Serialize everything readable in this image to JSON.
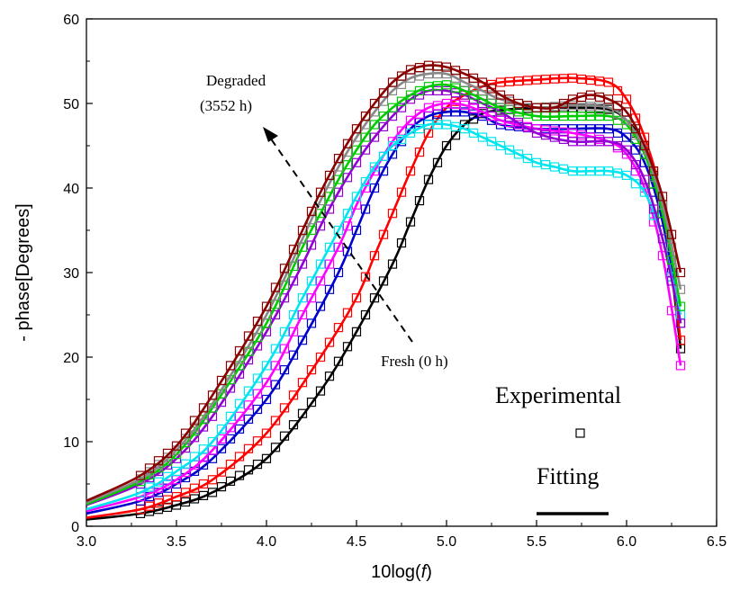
{
  "chart_data": {
    "type": "scatter",
    "xlabel": "10log(f)",
    "ylabel": "- phase[Degrees]",
    "xlim": [
      3.0,
      6.5
    ],
    "ylim": [
      0,
      60
    ],
    "x_ticks": [
      "3.0",
      "3.5",
      "4.0",
      "4.5",
      "5.0",
      "5.5",
      "6.0",
      "6.5"
    ],
    "y_ticks": [
      "0",
      "10",
      "20",
      "30",
      "40",
      "50",
      "60"
    ],
    "grid": false,
    "annotations": {
      "degraded_line1": "Degraded",
      "degraded_line2": "(3552 h)",
      "fresh": "Fresh (0 h)"
    },
    "legend": {
      "experimental": "Experimental",
      "fitting": "Fitting"
    },
    "series": [
      {
        "color": "#000000",
        "x": [
          3.0,
          3.3,
          3.5,
          3.7,
          4.0,
          4.3,
          4.5,
          4.7,
          4.8,
          4.9,
          5.0,
          5.1,
          5.2,
          5.3,
          5.5,
          5.7,
          5.9,
          6.0,
          6.1,
          6.2,
          6.3
        ],
        "y": [
          0.8,
          1.5,
          2.5,
          4.0,
          8.0,
          16.0,
          23.0,
          31.0,
          36.0,
          41.0,
          45.0,
          47.5,
          48.8,
          49.2,
          49.5,
          49.5,
          49.3,
          48.0,
          45.0,
          38.0,
          21.0
        ]
      },
      {
        "color": "#ff0000",
        "x": [
          3.0,
          3.3,
          3.5,
          3.7,
          4.0,
          4.3,
          4.5,
          4.6,
          4.7,
          4.8,
          4.9,
          5.0,
          5.1,
          5.2,
          5.3,
          5.5,
          5.7,
          5.9,
          6.0,
          6.1,
          6.2,
          6.3
        ],
        "y": [
          1.0,
          2.0,
          3.5,
          5.5,
          11.0,
          20.0,
          27.0,
          32.0,
          37.0,
          42.0,
          46.5,
          49.5,
          51.0,
          52.0,
          52.5,
          52.8,
          53.0,
          52.5,
          50.5,
          46.0,
          38.0,
          22.0
        ]
      },
      {
        "color": "#0000cc",
        "x": [
          3.0,
          3.3,
          3.5,
          3.7,
          4.0,
          4.2,
          4.4,
          4.5,
          4.6,
          4.7,
          4.8,
          4.9,
          5.0,
          5.1,
          5.2,
          5.3,
          5.5,
          5.7,
          5.9,
          6.0,
          6.1,
          6.2,
          6.3
        ],
        "y": [
          1.5,
          3.0,
          5.0,
          8.0,
          15.0,
          22.0,
          30.0,
          35.0,
          40.0,
          44.0,
          47.0,
          48.5,
          49.0,
          49.0,
          48.5,
          47.5,
          47.0,
          47.0,
          47.0,
          46.0,
          43.0,
          36.0,
          24.0
        ]
      },
      {
        "color": "#ff00ff",
        "x": [
          3.0,
          3.3,
          3.5,
          3.7,
          4.0,
          4.2,
          4.4,
          4.5,
          4.6,
          4.7,
          4.8,
          4.9,
          5.0,
          5.1,
          5.2,
          5.3,
          5.5,
          5.7,
          5.9,
          6.0,
          6.1,
          6.2,
          6.3
        ],
        "y": [
          1.8,
          3.5,
          5.5,
          9.0,
          17.0,
          25.0,
          33.0,
          38.0,
          42.0,
          45.5,
          48.0,
          49.5,
          50.0,
          49.8,
          49.0,
          48.0,
          47.0,
          46.5,
          45.5,
          44.0,
          40.0,
          32.0,
          19.0
        ]
      },
      {
        "color": "#00e5ee",
        "x": [
          3.0,
          3.3,
          3.5,
          3.7,
          4.0,
          4.2,
          4.4,
          4.5,
          4.6,
          4.7,
          4.8,
          4.9,
          5.0,
          5.1,
          5.2,
          5.3,
          5.4,
          5.5,
          5.6,
          5.7,
          5.8,
          5.9,
          6.0,
          6.1,
          6.2,
          6.3
        ],
        "y": [
          2.0,
          4.0,
          6.5,
          10.0,
          19.0,
          27.0,
          35.0,
          39.0,
          42.5,
          45.0,
          46.5,
          47.5,
          47.5,
          47.0,
          46.0,
          45.0,
          44.0,
          43.0,
          42.5,
          42.0,
          42.0,
          42.0,
          41.5,
          39.5,
          34.0,
          25.0
        ]
      },
      {
        "color": "#9400d3",
        "x": [
          3.0,
          3.3,
          3.5,
          3.7,
          4.0,
          4.2,
          4.3,
          4.4,
          4.5,
          4.6,
          4.7,
          4.8,
          4.9,
          5.0,
          5.1,
          5.2,
          5.3,
          5.5,
          5.7,
          5.9,
          6.0,
          6.1,
          6.2,
          6.3
        ],
        "y": [
          2.5,
          5.0,
          8.0,
          13.0,
          23.0,
          31.0,
          35.5,
          39.5,
          43.0,
          46.0,
          48.5,
          50.5,
          51.5,
          51.5,
          51.0,
          50.0,
          49.0,
          46.5,
          45.5,
          45.5,
          44.5,
          41.0,
          34.0,
          24.0
        ]
      },
      {
        "color": "#00cc00",
        "x": [
          3.0,
          3.3,
          3.5,
          3.7,
          4.0,
          4.2,
          4.3,
          4.4,
          4.5,
          4.6,
          4.7,
          4.8,
          4.9,
          5.0,
          5.1,
          5.2,
          5.3,
          5.5,
          5.7,
          5.9,
          6.0,
          6.1,
          6.2,
          6.3
        ],
        "y": [
          2.6,
          5.3,
          8.5,
          14.0,
          24.0,
          33.0,
          37.0,
          41.0,
          44.5,
          47.5,
          49.5,
          51.0,
          52.0,
          52.2,
          51.5,
          50.5,
          49.5,
          48.5,
          48.5,
          48.5,
          47.5,
          44.0,
          37.0,
          26.0
        ]
      },
      {
        "color": "#888888",
        "x": [
          3.0,
          3.3,
          3.5,
          3.7,
          4.0,
          4.2,
          4.3,
          4.4,
          4.5,
          4.6,
          4.7,
          4.8,
          4.9,
          5.0,
          5.1,
          5.2,
          5.3,
          5.5,
          5.7,
          5.9,
          6.0,
          6.1,
          6.2,
          6.3
        ],
        "y": [
          2.8,
          5.6,
          9.0,
          14.5,
          25.0,
          34.0,
          38.5,
          42.5,
          46.0,
          49.0,
          51.5,
          53.0,
          53.5,
          53.5,
          52.5,
          51.5,
          50.5,
          49.5,
          49.8,
          49.5,
          48.0,
          44.5,
          38.0,
          28.0
        ]
      },
      {
        "color": "#8b0000",
        "x": [
          3.0,
          3.3,
          3.5,
          3.7,
          4.0,
          4.2,
          4.3,
          4.4,
          4.5,
          4.6,
          4.7,
          4.8,
          4.9,
          5.0,
          5.1,
          5.2,
          5.3,
          5.4,
          5.5,
          5.6,
          5.7,
          5.8,
          5.9,
          6.0,
          6.1,
          6.2,
          6.3
        ],
        "y": [
          3.0,
          6.0,
          9.5,
          15.5,
          26.0,
          35.0,
          39.5,
          43.5,
          47.0,
          50.0,
          52.5,
          54.0,
          54.5,
          54.3,
          53.5,
          52.5,
          51.0,
          50.0,
          49.5,
          49.5,
          50.5,
          51.0,
          50.5,
          49.0,
          45.0,
          39.0,
          30.0
        ]
      }
    ]
  }
}
